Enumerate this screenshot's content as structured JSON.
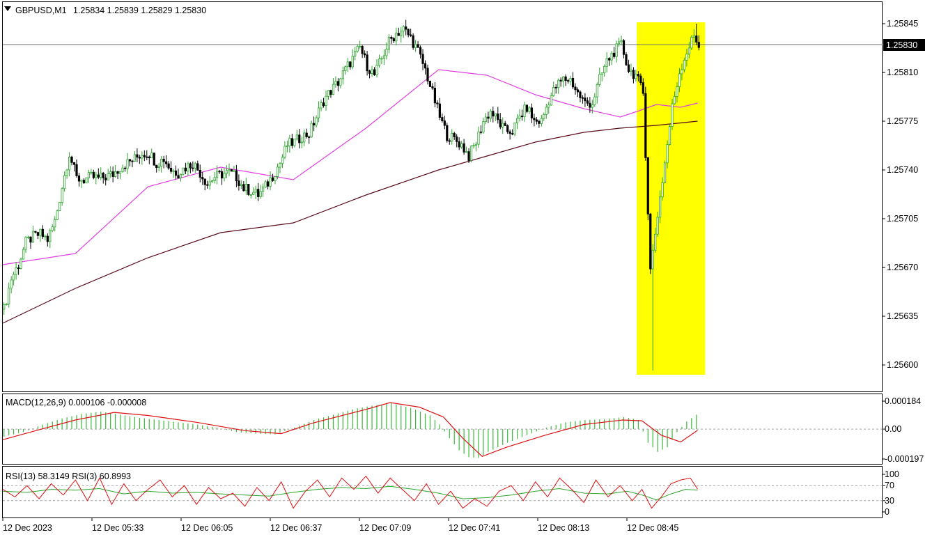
{
  "symbol_header": {
    "symbol": "GBPUSD,M1",
    "ohlc": "1.25834 1.25839 1.25829 1.25830"
  },
  "current_price": "1.25830",
  "colors": {
    "bull": "#2ba52b",
    "bear": "#000000",
    "ma_fast": "#e040e0",
    "ma_slow": "#5a0a1a",
    "highlight": "#ffff00",
    "macd_hist": "#39b839",
    "macd_signal": "#dd1111",
    "rsi13": "#2ba52b",
    "rsi3": "#dd1111"
  },
  "icons": {
    "collapse": "triangle-down-icon"
  },
  "chart_data": [
    {
      "type": "candlestick",
      "title": "GBPUSD,M1",
      "ylim": [
        1.2559,
        1.2585
      ],
      "y_ticks": [
        "1.25845",
        "1.25810",
        "1.25775",
        "1.25740",
        "1.25705",
        "1.25670",
        "1.25635",
        "1.25600"
      ],
      "x_ticks": [
        "12 Dec 2023",
        "12 Dec 05:33",
        "12 Dec 06:05",
        "12 Dec 06:37",
        "12 Dec 07:09",
        "12 Dec 07:41",
        "12 Dec 08:13",
        "12 Dec 08:45"
      ],
      "close_path": [
        [
          0,
          1.2564
        ],
        [
          3,
          1.25662
        ],
        [
          6,
          1.25672
        ],
        [
          9,
          1.25688
        ],
        [
          12,
          1.25692
        ],
        [
          15,
          1.25694
        ],
        [
          18,
          1.2569
        ],
        [
          21,
          1.25703
        ],
        [
          24,
          1.25728
        ],
        [
          27,
          1.25752
        ],
        [
          30,
          1.25734
        ],
        [
          33,
          1.25733
        ],
        [
          36,
          1.25735
        ],
        [
          39,
          1.25734
        ],
        [
          42,
          1.25735
        ],
        [
          45,
          1.25737
        ],
        [
          48,
          1.25742
        ],
        [
          51,
          1.25745
        ],
        [
          54,
          1.25748
        ],
        [
          57,
          1.25752
        ],
        [
          60,
          1.25752
        ],
        [
          63,
          1.25745
        ],
        [
          66,
          1.25748
        ],
        [
          69,
          1.2574
        ],
        [
          72,
          1.25738
        ],
        [
          75,
          1.25742
        ],
        [
          78,
          1.25745
        ],
        [
          81,
          1.25738
        ],
        [
          84,
          1.2573
        ],
        [
          87,
          1.25735
        ],
        [
          90,
          1.25737
        ],
        [
          93,
          1.25738
        ],
        [
          96,
          1.25735
        ],
        [
          99,
          1.25727
        ],
        [
          102,
          1.25725
        ],
        [
          105,
          1.25722
        ],
        [
          108,
          1.25728
        ],
        [
          111,
          1.25736
        ],
        [
          114,
          1.25745
        ],
        [
          117,
          1.25758
        ],
        [
          120,
          1.2576
        ],
        [
          123,
          1.25764
        ],
        [
          126,
          1.25766
        ],
        [
          129,
          1.25778
        ],
        [
          132,
          1.2579
        ],
        [
          135,
          1.25797
        ],
        [
          138,
          1.25803
        ],
        [
          141,
          1.25812
        ],
        [
          144,
          1.2582
        ],
        [
          147,
          1.25828
        ],
        [
          150,
          1.25815
        ],
        [
          153,
          1.25808
        ],
        [
          156,
          1.2582
        ],
        [
          159,
          1.25832
        ],
        [
          162,
          1.25838
        ],
        [
          165,
          1.25841
        ],
        [
          168,
          1.25835
        ],
        [
          171,
          1.25825
        ],
        [
          174,
          1.25812
        ],
        [
          177,
          1.25795
        ],
        [
          180,
          1.25778
        ],
        [
          183,
          1.25765
        ],
        [
          186,
          1.25762
        ],
        [
          189,
          1.25758
        ],
        [
          192,
          1.2575
        ],
        [
          195,
          1.2576
        ],
        [
          198,
          1.25775
        ],
        [
          201,
          1.25782
        ],
        [
          204,
          1.25775
        ],
        [
          207,
          1.25768
        ],
        [
          210,
          1.25768
        ],
        [
          213,
          1.25778
        ],
        [
          216,
          1.25785
        ],
        [
          219,
          1.25775
        ],
        [
          222,
          1.25775
        ],
        [
          225,
          1.2579
        ],
        [
          228,
          1.258
        ],
        [
          231,
          1.25805
        ],
        [
          234,
          1.25805
        ],
        [
          237,
          1.25795
        ],
        [
          240,
          1.25788
        ],
        [
          243,
          1.25788
        ],
        [
          246,
          1.25805
        ],
        [
          249,
          1.25818
        ],
        [
          252,
          1.25825
        ],
        [
          255,
          1.2583
        ],
        [
          258,
          1.25812
        ],
        [
          261,
          1.25808
        ],
        [
          264,
          1.25795
        ],
        [
          267,
          1.25668
        ],
        [
          270,
          1.25708
        ],
        [
          273,
          1.25745
        ],
        [
          276,
          1.25785
        ],
        [
          279,
          1.2581
        ],
        [
          282,
          1.25825
        ],
        [
          285,
          1.25836
        ],
        [
          287,
          1.2583
        ]
      ],
      "wicks": {
        "low_spike": [
          268,
          1.25596
        ],
        "recent_high": [
          286,
          1.25845
        ]
      },
      "series": [
        {
          "name": "",
          "kind": "ma_fast",
          "x": [
            0,
            30,
            60,
            90,
            120,
            150,
            180,
            200,
            220,
            240,
            255,
            262,
            270,
            280,
            287
          ],
          "y": [
            1.25672,
            1.2568,
            1.25728,
            1.25742,
            1.25733,
            1.2577,
            1.25812,
            1.25808,
            1.25794,
            1.25784,
            1.25778,
            1.25782,
            1.25787,
            1.25785,
            1.25788
          ]
        },
        {
          "name": "",
          "kind": "ma_slow",
          "x": [
            0,
            30,
            60,
            90,
            120,
            150,
            180,
            200,
            220,
            240,
            255,
            270,
            287
          ],
          "y": [
            1.2563,
            1.25655,
            1.25677,
            1.25695,
            1.25702,
            1.25722,
            1.2574,
            1.2575,
            1.2576,
            1.25767,
            1.2577,
            1.25772,
            1.25775
          ]
        }
      ],
      "highlight_box": {
        "x_start": 263,
        "x_end": 289,
        "y_top": 1.25846,
        "y_bottom": 1.25593
      }
    },
    {
      "type": "bar",
      "title": "MACD(12,26,9) 0.000106 -0.000008",
      "ylim": [
        -0.000197,
        0.000184
      ],
      "y_ticks": [
        "0.000184",
        "0.00",
        "-0.000197"
      ],
      "histogram_path": [
        [
          0,
          -5e-05
        ],
        [
          8,
          -2e-05
        ],
        [
          16,
          3e-05
        ],
        [
          24,
          7e-05
        ],
        [
          32,
          0.0001
        ],
        [
          40,
          0.000115
        ],
        [
          48,
          9.5e-05
        ],
        [
          56,
          7.5e-05
        ],
        [
          64,
          6e-05
        ],
        [
          72,
          4.5e-05
        ],
        [
          80,
          3e-05
        ],
        [
          88,
          1e-05
        ],
        [
          96,
          -2e-05
        ],
        [
          104,
          -3e-05
        ],
        [
          112,
          -3.5e-05
        ],
        [
          120,
          1e-05
        ],
        [
          128,
          6e-05
        ],
        [
          136,
          9.5e-05
        ],
        [
          144,
          0.00013
        ],
        [
          152,
          0.000155
        ],
        [
          160,
          0.00017
        ],
        [
          168,
          0.00014
        ],
        [
          176,
          9e-05
        ],
        [
          180,
          3e-05
        ],
        [
          184,
          -6e-05
        ],
        [
          188,
          -0.00014
        ],
        [
          192,
          -0.000185
        ],
        [
          196,
          -0.00019
        ],
        [
          200,
          -0.00015
        ],
        [
          208,
          -9e-05
        ],
        [
          216,
          -4e-05
        ],
        [
          224,
          1e-05
        ],
        [
          232,
          4.5e-05
        ],
        [
          240,
          6e-05
        ],
        [
          248,
          6.5e-05
        ],
        [
          256,
          8e-05
        ],
        [
          262,
          6e-05
        ],
        [
          266,
          -9e-05
        ],
        [
          270,
          -0.00015
        ],
        [
          274,
          -0.00012
        ],
        [
          278,
          -2e-05
        ],
        [
          282,
          5e-05
        ],
        [
          287,
          0.000106
        ]
      ],
      "signal_path": [
        [
          0,
          -7e-05
        ],
        [
          16,
          0.0
        ],
        [
          30,
          6e-05
        ],
        [
          46,
          0.00011
        ],
        [
          60,
          9e-05
        ],
        [
          80,
          4.5e-05
        ],
        [
          100,
          -1e-05
        ],
        [
          115,
          -3e-05
        ],
        [
          128,
          4e-05
        ],
        [
          150,
          0.00013
        ],
        [
          160,
          0.000175
        ],
        [
          172,
          0.000145
        ],
        [
          182,
          8e-05
        ],
        [
          190,
          -6e-05
        ],
        [
          198,
          -0.00018
        ],
        [
          208,
          -0.00012
        ],
        [
          224,
          -4e-05
        ],
        [
          240,
          3e-05
        ],
        [
          256,
          6e-05
        ],
        [
          264,
          5.5e-05
        ],
        [
          272,
          -4e-05
        ],
        [
          280,
          -8.5e-05
        ],
        [
          287,
          -8e-06
        ]
      ]
    },
    {
      "type": "line",
      "title": "RSI(13) 58.3149 RSI(3) 60.8993",
      "ylim": [
        0,
        100
      ],
      "y_ticks": [
        "100",
        "70",
        "30",
        "0"
      ],
      "levels": [
        70,
        30
      ],
      "series": [
        {
          "name": "RSI(13)",
          "value": 58.3149,
          "x": [
            0,
            10,
            20,
            30,
            40,
            50,
            60,
            70,
            80,
            90,
            100,
            110,
            120,
            130,
            140,
            150,
            160,
            170,
            180,
            190,
            200,
            210,
            220,
            230,
            240,
            250,
            258,
            264,
            270,
            276,
            282,
            287
          ],
          "y": [
            55,
            52,
            60,
            58,
            62,
            48,
            55,
            50,
            52,
            48,
            45,
            42,
            52,
            60,
            65,
            62,
            68,
            60,
            50,
            35,
            38,
            45,
            55,
            62,
            50,
            48,
            55,
            45,
            32,
            48,
            60,
            58
          ]
        },
        {
          "name": "RSI(3)",
          "value": 60.8993,
          "x": [
            0,
            5,
            10,
            15,
            20,
            25,
            30,
            35,
            40,
            45,
            50,
            55,
            60,
            65,
            70,
            75,
            80,
            85,
            90,
            95,
            100,
            105,
            110,
            115,
            120,
            125,
            130,
            135,
            140,
            145,
            150,
            155,
            160,
            165,
            170,
            175,
            180,
            185,
            190,
            195,
            200,
            205,
            210,
            215,
            220,
            225,
            230,
            235,
            240,
            245,
            250,
            255,
            260,
            264,
            268,
            272,
            276,
            280,
            284,
            287
          ],
          "y": [
            60,
            40,
            70,
            35,
            75,
            45,
            85,
            30,
            90,
            20,
            75,
            30,
            60,
            85,
            40,
            70,
            20,
            65,
            35,
            50,
            15,
            65,
            30,
            80,
            10,
            55,
            85,
            40,
            90,
            60,
            95,
            50,
            90,
            60,
            30,
            75,
            20,
            55,
            10,
            35,
            15,
            55,
            70,
            30,
            80,
            40,
            90,
            60,
            25,
            85,
            40,
            70,
            30,
            60,
            10,
            40,
            75,
            85,
            90,
            61
          ]
        }
      ]
    }
  ]
}
